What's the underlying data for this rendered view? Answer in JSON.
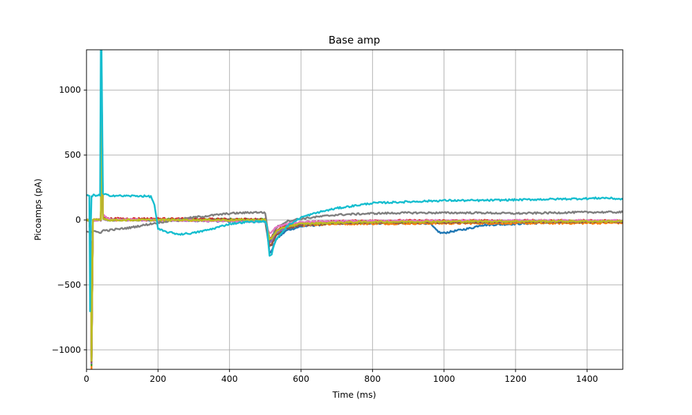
{
  "chart_data": {
    "type": "line",
    "title": "Base amp",
    "xlabel": "Time (ms)",
    "ylabel": "Picoamps (pA)",
    "xlim": [
      0,
      1500
    ],
    "ylim": [
      -1150,
      1310
    ],
    "xticks": [
      0,
      200,
      400,
      600,
      800,
      1000,
      1200,
      1400
    ],
    "yticks": [
      -1000,
      -500,
      0,
      500,
      1000
    ],
    "ytick_labels": [
      "−1000",
      "−500",
      "0",
      "500",
      "1000"
    ],
    "grid": true,
    "series": [
      {
        "color": "#1f77b4",
        "x": [
          0,
          8,
          12,
          14,
          18,
          40,
          42,
          46,
          60,
          200,
          400,
          500,
          505,
          512,
          518,
          530,
          560,
          600,
          700,
          800,
          900,
          960,
          975,
          990,
          1000,
          1040,
          1080,
          1100,
          1200,
          1300,
          1400,
          1500
        ],
        "y": [
          0,
          0,
          -200,
          -1100,
          0,
          0,
          1100,
          30,
          0,
          0,
          -10,
          -10,
          -100,
          -250,
          -240,
          -150,
          -80,
          -50,
          -25,
          -25,
          -25,
          -25,
          -70,
          -100,
          -100,
          -80,
          -60,
          -40,
          -30,
          -20,
          -15,
          -10
        ]
      },
      {
        "color": "#ff7f0e",
        "x": [
          0,
          8,
          12,
          14,
          18,
          40,
          42,
          46,
          60,
          200,
          400,
          500,
          505,
          512,
          518,
          530,
          560,
          600,
          700,
          800,
          1000,
          1200,
          1400,
          1500
        ],
        "y": [
          0,
          0,
          -200,
          -1150,
          0,
          0,
          1150,
          20,
          0,
          0,
          -5,
          -5,
          -80,
          -190,
          -180,
          -110,
          -60,
          -40,
          -30,
          -28,
          -26,
          -25,
          -24,
          -22
        ]
      },
      {
        "color": "#2ca02c",
        "x": [
          0,
          8,
          12,
          14,
          18,
          40,
          42,
          46,
          60,
          200,
          400,
          500,
          505,
          512,
          518,
          530,
          560,
          600,
          700,
          800,
          1000,
          1200,
          1400,
          1500
        ],
        "y": [
          0,
          0,
          -200,
          -1120,
          0,
          0,
          1120,
          15,
          0,
          5,
          5,
          5,
          -60,
          -160,
          -150,
          -95,
          -50,
          -30,
          -20,
          -15,
          -12,
          -10,
          -10,
          -8
        ]
      },
      {
        "color": "#d62728",
        "x": [
          0,
          8,
          12,
          14,
          18,
          40,
          42,
          46,
          60,
          200,
          400,
          500,
          505,
          512,
          518,
          530,
          560,
          600,
          700,
          800,
          1000,
          1200,
          1400,
          1500
        ],
        "y": [
          0,
          0,
          -200,
          -1100,
          0,
          0,
          1100,
          20,
          10,
          10,
          5,
          5,
          -50,
          -140,
          -130,
          -80,
          -40,
          -20,
          -10,
          -5,
          -5,
          -5,
          -5,
          -5
        ]
      },
      {
        "color": "#9467bd",
        "x": [
          0,
          8,
          12,
          14,
          18,
          40,
          42,
          46,
          60,
          200,
          400,
          500,
          505,
          512,
          518,
          530,
          560,
          600,
          700,
          800,
          1000,
          1200,
          1400,
          1500
        ],
        "y": [
          0,
          0,
          -200,
          -1100,
          0,
          0,
          1100,
          10,
          0,
          0,
          -5,
          -5,
          -70,
          -170,
          -160,
          -100,
          -55,
          -35,
          -20,
          -15,
          -12,
          -10,
          -10,
          -10
        ]
      },
      {
        "color": "#8c564b",
        "x": [
          0,
          8,
          12,
          14,
          18,
          40,
          42,
          46,
          60,
          200,
          400,
          500,
          505,
          512,
          518,
          530,
          560,
          600,
          700,
          800,
          1000,
          1200,
          1400,
          1500
        ],
        "y": [
          0,
          0,
          -200,
          -1100,
          0,
          0,
          1100,
          10,
          5,
          0,
          0,
          0,
          -90,
          -200,
          -190,
          -120,
          -65,
          -40,
          -25,
          -20,
          -18,
          -15,
          -15,
          -15
        ]
      },
      {
        "color": "#7f7f7f",
        "x": [
          0,
          10,
          12,
          14,
          18,
          40,
          42,
          46,
          60,
          120,
          200,
          300,
          400,
          480,
          500,
          505,
          512,
          518,
          530,
          560,
          600,
          700,
          800,
          900,
          1000,
          1100,
          1200,
          1300,
          1400,
          1500
        ],
        "y": [
          -85,
          -90,
          -90,
          -90,
          -90,
          -95,
          -95,
          -80,
          -80,
          -60,
          -20,
          20,
          50,
          60,
          55,
          -40,
          -150,
          -140,
          -60,
          -10,
          10,
          40,
          50,
          55,
          55,
          55,
          50,
          55,
          60,
          60
        ]
      },
      {
        "color": "#e377c2",
        "x": [
          0,
          8,
          12,
          14,
          18,
          40,
          42,
          46,
          60,
          200,
          400,
          500,
          505,
          512,
          518,
          530,
          560,
          600,
          700,
          800,
          1000,
          1200,
          1400,
          1500
        ],
        "y": [
          0,
          0,
          -200,
          -1000,
          0,
          0,
          1150,
          40,
          5,
          0,
          -10,
          -15,
          -60,
          -100,
          -95,
          -55,
          -30,
          -15,
          -10,
          -8,
          -5,
          -5,
          -5,
          -5
        ]
      },
      {
        "color": "#bcbd22",
        "x": [
          0,
          8,
          12,
          14,
          18,
          40,
          42,
          46,
          60,
          200,
          400,
          500,
          505,
          512,
          518,
          530,
          560,
          600,
          700,
          800,
          1000,
          1200,
          1400,
          1500
        ],
        "y": [
          0,
          0,
          -200,
          -1090,
          0,
          0,
          1100,
          15,
          0,
          0,
          0,
          0,
          -60,
          -150,
          -140,
          -90,
          -50,
          -30,
          -20,
          -15,
          -12,
          -10,
          -10,
          -10
        ]
      },
      {
        "color": "#17becf",
        "x": [
          0,
          6,
          8,
          10,
          12,
          14,
          16,
          20,
          38,
          40,
          42,
          46,
          60,
          100,
          150,
          180,
          190,
          200,
          220,
          260,
          300,
          350,
          400,
          450,
          500,
          505,
          512,
          518,
          530,
          560,
          600,
          650,
          700,
          750,
          800,
          900,
          1000,
          1100,
          1200,
          1300,
          1400,
          1450,
          1500
        ],
        "y": [
          190,
          185,
          180,
          -700,
          -60,
          180,
          180,
          190,
          190,
          1310,
          1310,
          200,
          190,
          185,
          185,
          180,
          120,
          -70,
          -90,
          -110,
          -100,
          -70,
          -30,
          -15,
          -10,
          -60,
          -280,
          -260,
          -150,
          -50,
          20,
          60,
          90,
          110,
          130,
          140,
          150,
          150,
          155,
          160,
          165,
          170,
          160
        ]
      }
    ]
  }
}
